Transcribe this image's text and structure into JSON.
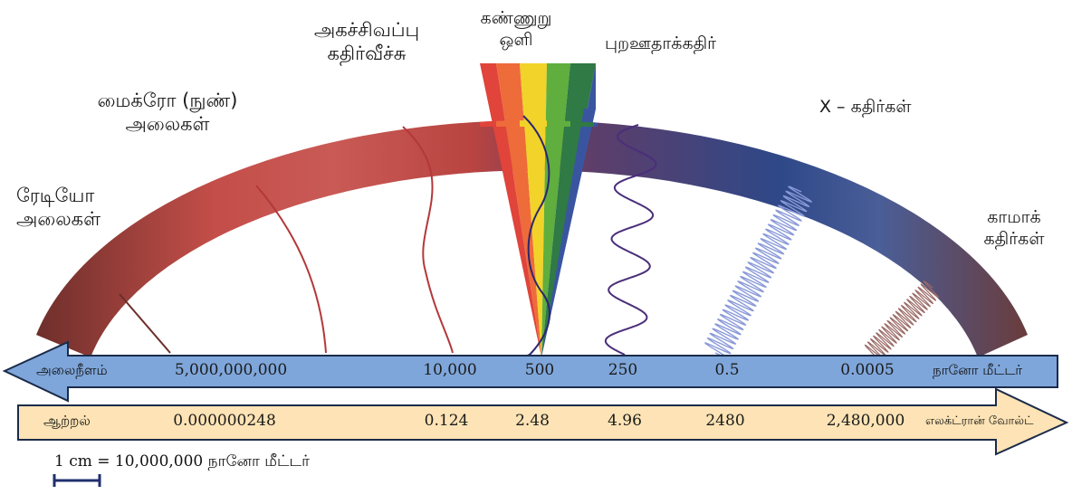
{
  "bands": {
    "radio": [
      "ரேடியோ",
      "அலைகள்"
    ],
    "microwave": [
      "மைக்ரோ (நுண்)",
      "அலைகள்"
    ],
    "infrared": [
      "அகச்சிவப்பு",
      "கதிர்வீச்சு"
    ],
    "visible": [
      "கண்ணுறு",
      "ஒளி"
    ],
    "ultraviolet": "புறஊதாக்கதிர்",
    "xray": "X – கதிர்கள்",
    "gamma": [
      "காமாக்",
      "கதிர்கள்"
    ]
  },
  "wavelength": {
    "label": "அலைநீளம்",
    "unit": "நானோ மீட்டர்",
    "values": [
      "5,000,000,000",
      "10,000",
      "500",
      "250",
      "0.5",
      "0.0005"
    ]
  },
  "energy": {
    "label": "ஆற்றல்",
    "unit": "எலக்ட்ரான் வோல்ட்",
    "values": [
      "0.000000248",
      "0.124",
      "2.48",
      "4.96",
      "2480",
      "2,480,000"
    ]
  },
  "scale_bar": {
    "prefix": "1 cm = 10,000,000",
    "unit": "நானோ மீட்டர்"
  },
  "colors": {
    "radio": "#6b2e2a",
    "microwave": "#c8504c",
    "ultraviolet": "#5b3f6e",
    "xray": "#2f4a8c",
    "gamma": "#6a4040",
    "wavelength_bar": "#7fa6da",
    "energy_bar": "#fde3b5"
  }
}
